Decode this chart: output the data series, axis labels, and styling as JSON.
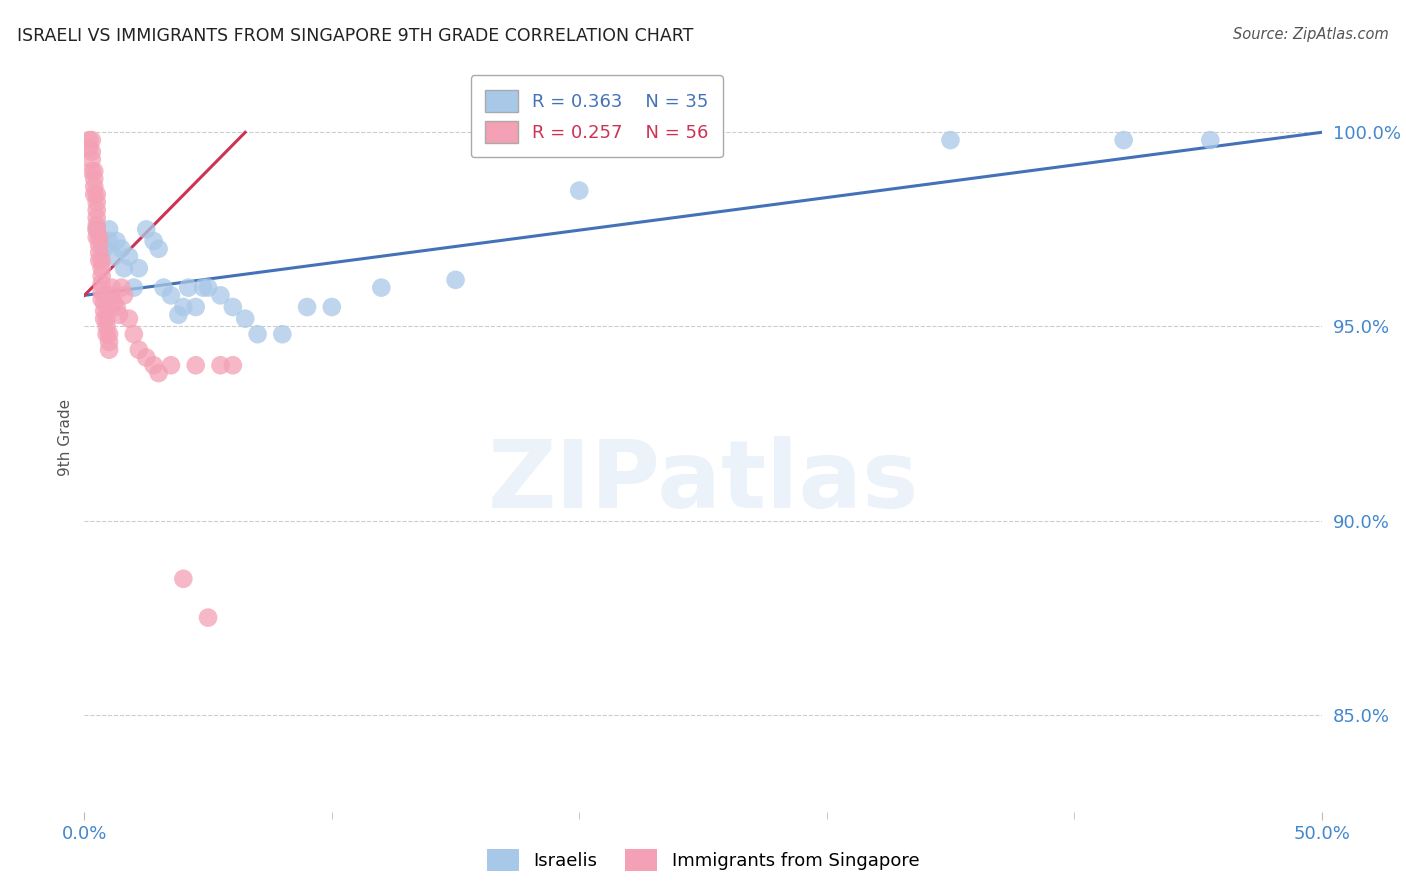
{
  "title": "ISRAELI VS IMMIGRANTS FROM SINGAPORE 9TH GRADE CORRELATION CHART",
  "source": "Source: ZipAtlas.com",
  "ylabel": "9th Grade",
  "ytick_labels": [
    "85.0%",
    "90.0%",
    "95.0%",
    "100.0%"
  ],
  "ytick_values": [
    0.85,
    0.9,
    0.95,
    1.0
  ],
  "xlim": [
    0.0,
    0.5
  ],
  "ylim": [
    0.825,
    1.018
  ],
  "legend_blue_r": "R = 0.363",
  "legend_blue_n": "N = 35",
  "legend_pink_r": "R = 0.257",
  "legend_pink_n": "N = 56",
  "blue_color": "#a8c8e8",
  "pink_color": "#f4a0b5",
  "blue_line_color": "#4472b8",
  "pink_line_color": "#cc3355",
  "background_color": "#ffffff",
  "grid_color": "#cccccc",
  "title_color": "#222222",
  "axis_label_color": "#4488cc",
  "blue_points_x": [
    0.005,
    0.008,
    0.01,
    0.01,
    0.012,
    0.013,
    0.015,
    0.016,
    0.018,
    0.02,
    0.022,
    0.025,
    0.028,
    0.03,
    0.032,
    0.035,
    0.038,
    0.04,
    0.042,
    0.045,
    0.048,
    0.05,
    0.055,
    0.06,
    0.065,
    0.07,
    0.08,
    0.09,
    0.1,
    0.12,
    0.15,
    0.2,
    0.35,
    0.42,
    0.455
  ],
  "blue_points_y": [
    0.975,
    0.97,
    0.975,
    0.972,
    0.968,
    0.972,
    0.97,
    0.965,
    0.968,
    0.96,
    0.965,
    0.975,
    0.972,
    0.97,
    0.96,
    0.958,
    0.953,
    0.955,
    0.96,
    0.955,
    0.96,
    0.96,
    0.958,
    0.955,
    0.952,
    0.948,
    0.948,
    0.955,
    0.955,
    0.96,
    0.962,
    0.985,
    0.998,
    0.998,
    0.998
  ],
  "pink_points_x": [
    0.002,
    0.002,
    0.003,
    0.003,
    0.003,
    0.003,
    0.004,
    0.004,
    0.004,
    0.004,
    0.005,
    0.005,
    0.005,
    0.005,
    0.005,
    0.005,
    0.005,
    0.006,
    0.006,
    0.006,
    0.006,
    0.007,
    0.007,
    0.007,
    0.007,
    0.007,
    0.007,
    0.008,
    0.008,
    0.008,
    0.008,
    0.009,
    0.009,
    0.009,
    0.01,
    0.01,
    0.01,
    0.011,
    0.011,
    0.012,
    0.013,
    0.014,
    0.015,
    0.016,
    0.018,
    0.02,
    0.022,
    0.025,
    0.028,
    0.03,
    0.035,
    0.04,
    0.045,
    0.05,
    0.055,
    0.06
  ],
  "pink_points_y": [
    0.998,
    0.996,
    0.998,
    0.995,
    0.993,
    0.99,
    0.99,
    0.988,
    0.986,
    0.984,
    0.984,
    0.982,
    0.98,
    0.978,
    0.976,
    0.975,
    0.973,
    0.973,
    0.971,
    0.969,
    0.967,
    0.967,
    0.965,
    0.963,
    0.961,
    0.959,
    0.957,
    0.958,
    0.956,
    0.954,
    0.952,
    0.952,
    0.95,
    0.948,
    0.948,
    0.946,
    0.944,
    0.96,
    0.958,
    0.956,
    0.955,
    0.953,
    0.96,
    0.958,
    0.952,
    0.948,
    0.944,
    0.942,
    0.94,
    0.938,
    0.94,
    0.885,
    0.94,
    0.875,
    0.94,
    0.94
  ],
  "blue_trendline_x": [
    0.0,
    0.5
  ],
  "blue_trendline_y": [
    0.958,
    1.0
  ],
  "pink_trendline_x": [
    0.0,
    0.065
  ],
  "pink_trendline_y": [
    0.958,
    1.0
  ],
  "watermark_text": "ZIPatlas",
  "bottom_legend_labels": [
    "Israelis",
    "Immigrants from Singapore"
  ]
}
